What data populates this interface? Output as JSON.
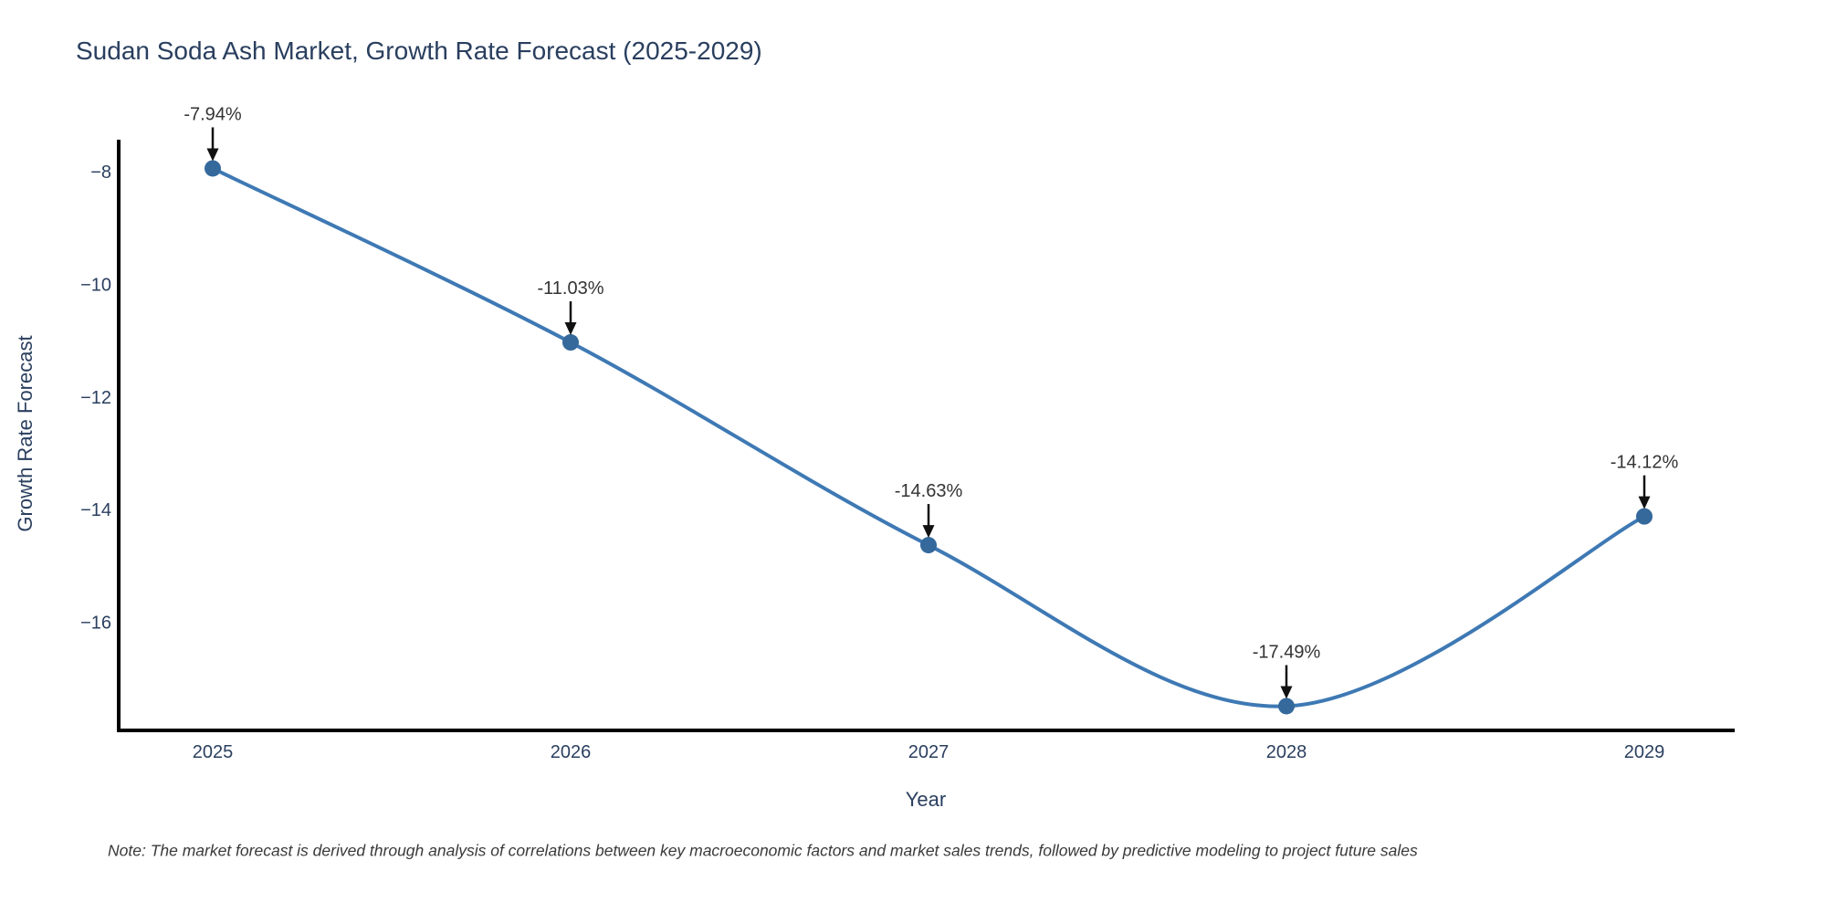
{
  "title": "Sudan Soda Ash Market, Growth Rate Forecast (2025-2029)",
  "note": "Note: The market forecast is derived through analysis of correlations between key macroeconomic factors and market sales trends, followed by predictive modeling to project future sales",
  "chart_data": {
    "type": "line",
    "title": "Sudan Soda Ash Market, Growth Rate Forecast (2025-2029)",
    "xlabel": "Year",
    "ylabel": "Growth Rate Forecast",
    "x": [
      2025,
      2026,
      2027,
      2028,
      2029
    ],
    "series": [
      {
        "name": "Growth Rate Forecast",
        "values": [
          -7.94,
          -11.03,
          -14.63,
          -17.49,
          -14.12
        ]
      }
    ],
    "point_labels": [
      "-7.94%",
      "-11.03%",
      "-14.63%",
      "-17.49%",
      "-14.12%"
    ],
    "x_tick_labels": [
      "2025",
      "2026",
      "2027",
      "2028",
      "2029"
    ],
    "y_ticks": [
      -8,
      -10,
      -12,
      -14,
      -16
    ],
    "y_tick_labels": [
      "−8",
      "−10",
      "−12",
      "−14",
      "−16"
    ],
    "ylim": [
      -17.92,
      -7.43
    ],
    "line_shape": "spline",
    "grid": false,
    "legend_position": "none",
    "colors": {
      "line": "#3e79b4",
      "marker": "#35699c",
      "axis": "#000000",
      "tick_text": "#2a3f5f",
      "annotation_text": "#333333",
      "arrow": "#111111",
      "title_text": "#2a3f5f",
      "background": "#ffffff"
    }
  }
}
